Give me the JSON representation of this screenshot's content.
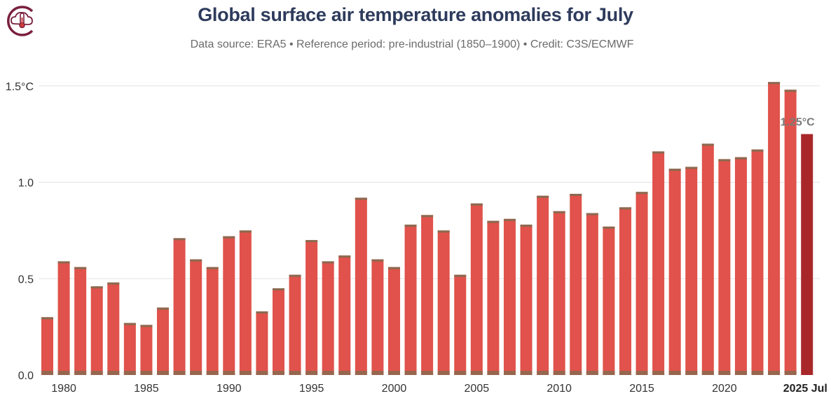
{
  "header": {
    "title": "Global surface air temperature anomalies for July",
    "subtitle": "Data source: ERA5 • Reference period: pre-industrial (1850–1900) • Credit: C3S/ECMWF",
    "logo_icon": "thermometer-cloud-icon"
  },
  "colors": {
    "bar": "#e0524b",
    "bar_highlight": "#a8282a",
    "bar_base": "#8a6a50",
    "grid": "#e3e3e3",
    "title": "#2e3b5c"
  },
  "chart_data": {
    "type": "bar",
    "title": "Global surface air temperature anomalies for July",
    "xlabel": "",
    "ylabel": "",
    "ylim": [
      0,
      1.6
    ],
    "y_ticks": [
      {
        "value": 0.0,
        "label": "0.0"
      },
      {
        "value": 0.5,
        "label": "0.5"
      },
      {
        "value": 1.0,
        "label": "1.0"
      },
      {
        "value": 1.5,
        "label": "1.5°C"
      }
    ],
    "x_tick_labels": [
      {
        "year": 1980,
        "label": "1980"
      },
      {
        "year": 1985,
        "label": "1985"
      },
      {
        "year": 1990,
        "label": "1990"
      },
      {
        "year": 1995,
        "label": "1995"
      },
      {
        "year": 2000,
        "label": "2000"
      },
      {
        "year": 2005,
        "label": "2005"
      },
      {
        "year": 2010,
        "label": "2010"
      },
      {
        "year": 2015,
        "label": "2015"
      },
      {
        "year": 2020,
        "label": "2020"
      },
      {
        "year": 2025,
        "label": "2025 Jul",
        "bold": true
      }
    ],
    "categories": [
      1979,
      1980,
      1981,
      1982,
      1983,
      1984,
      1985,
      1986,
      1987,
      1988,
      1989,
      1990,
      1991,
      1992,
      1993,
      1994,
      1995,
      1996,
      1997,
      1998,
      1999,
      2000,
      2001,
      2002,
      2003,
      2004,
      2005,
      2006,
      2007,
      2008,
      2009,
      2010,
      2011,
      2012,
      2013,
      2014,
      2015,
      2016,
      2017,
      2018,
      2019,
      2020,
      2021,
      2022,
      2023,
      2024,
      2025
    ],
    "values": [
      0.3,
      0.59,
      0.56,
      0.46,
      0.48,
      0.27,
      0.26,
      0.35,
      0.71,
      0.6,
      0.56,
      0.72,
      0.75,
      0.33,
      0.45,
      0.52,
      0.7,
      0.59,
      0.62,
      0.92,
      0.6,
      0.56,
      0.78,
      0.83,
      0.75,
      0.52,
      0.89,
      0.8,
      0.81,
      0.78,
      0.93,
      0.85,
      0.94,
      0.84,
      0.77,
      0.87,
      0.95,
      1.16,
      1.07,
      1.08,
      1.2,
      1.12,
      1.13,
      1.17,
      1.52,
      1.48,
      1.25
    ],
    "highlight_year": 2025,
    "annotations": [
      {
        "year": 2025,
        "text": "1.25°C"
      }
    ]
  }
}
